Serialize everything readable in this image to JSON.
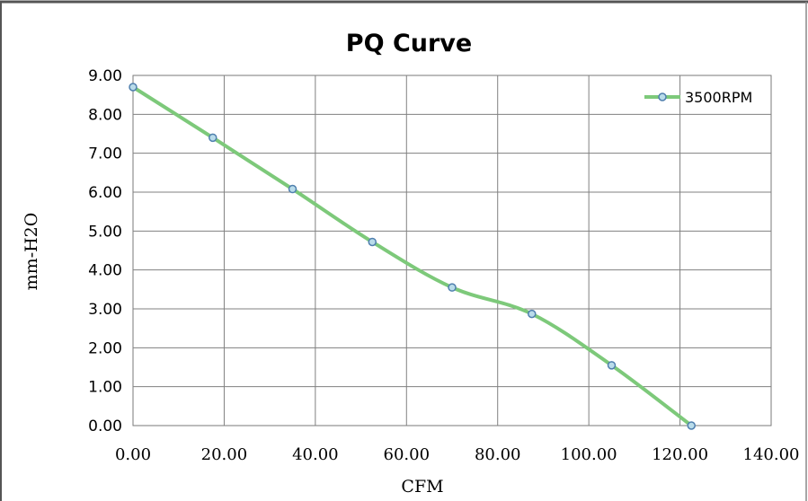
{
  "chart_data": {
    "type": "line",
    "title": "PQ Curve",
    "xlabel": "CFM",
    "ylabel": "mm-H2O",
    "xlim": [
      0,
      140
    ],
    "ylim": [
      0,
      9
    ],
    "x_ticks": [
      "0.00",
      "20.00",
      "40.00",
      "60.00",
      "80.00",
      "100.00",
      "120.00",
      "140.00"
    ],
    "y_ticks": [
      "0.00",
      "1.00",
      "2.00",
      "3.00",
      "4.00",
      "5.00",
      "6.00",
      "7.00",
      "8.00",
      "9.00"
    ],
    "grid": true,
    "legend_position": "top-right",
    "series": [
      {
        "name": "3500RPM",
        "color": "#7dc97a",
        "marker_fill": "#b9dcea",
        "marker_stroke": "#4f7fae",
        "x": [
          0,
          17.5,
          35,
          52.5,
          70,
          87.5,
          105,
          122.5
        ],
        "y": [
          8.7,
          7.4,
          6.08,
          4.72,
          3.55,
          2.87,
          1.55,
          0
        ]
      }
    ]
  }
}
